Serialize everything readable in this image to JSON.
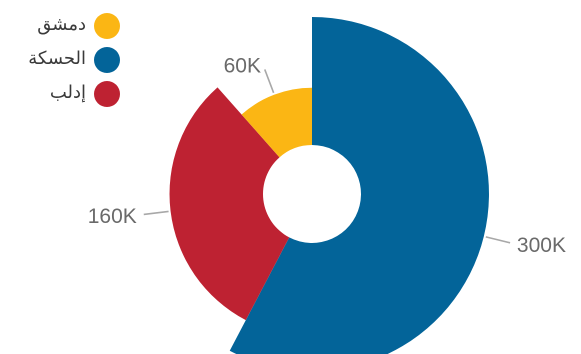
{
  "chart_data": {
    "type": "pie",
    "variant": "nightingale-rose-donut",
    "series": [
      {
        "name": "دمشق",
        "value": 60000,
        "display_label": "60K",
        "color": "#fbb614"
      },
      {
        "name": "الحسكة",
        "value": 300000,
        "display_label": "300K",
        "color": "#036499"
      },
      {
        "name": "إدلب",
        "value": 160000,
        "display_label": "160K",
        "color": "#be2232"
      }
    ],
    "legend": {
      "placement": "top-left"
    },
    "title": "",
    "grid": false
  }
}
